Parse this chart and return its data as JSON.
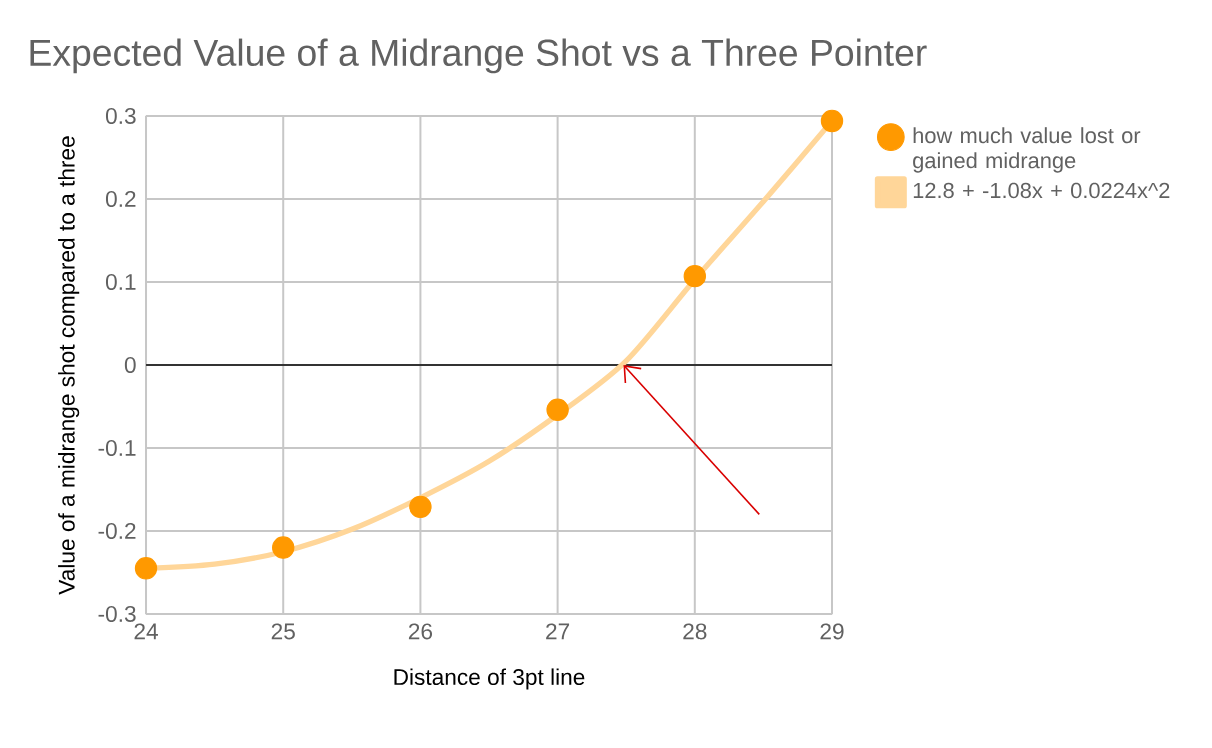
{
  "chart_data": {
    "type": "scatter",
    "title": "Expected Value of a Midrange Shot vs a Three Pointer",
    "xlabel": "Distance of 3pt line",
    "ylabel": "Value of a midrange shot compared to a three",
    "series": [
      {
        "name": "how much value lost or gained midrange",
        "color": "#ff9900",
        "marker": "circle",
        "x": [
          24,
          25,
          26,
          27,
          28,
          29
        ],
        "values": [
          -0.245,
          -0.22,
          -0.171,
          -0.054,
          0.107,
          0.294
        ]
      },
      {
        "name": "12.8 + -1.08x + 0.0224x^2",
        "type": "line",
        "color": "#ffd699",
        "marker": "none",
        "x": [
          24,
          24.5,
          25,
          25.5,
          26,
          26.5,
          27,
          27.5,
          28,
          28.5,
          29
        ],
        "values": [
          -0.245,
          -0.24,
          -0.225,
          -0.198,
          -0.16,
          -0.116,
          -0.06,
          0.005,
          0.103,
          0.197,
          0.294
        ]
      }
    ],
    "xlim": [
      24,
      29
    ],
    "ylim": [
      -0.3,
      0.3
    ],
    "xticks": [
      24,
      25,
      26,
      27,
      28,
      29
    ],
    "yticks": [
      -0.3,
      -0.2,
      -0.1,
      0,
      0.1,
      0.2,
      0.3
    ],
    "ref_lines": [
      {
        "axis": "y",
        "value": 0,
        "color": "#333333"
      }
    ],
    "grid": true,
    "legend": "right"
  }
}
